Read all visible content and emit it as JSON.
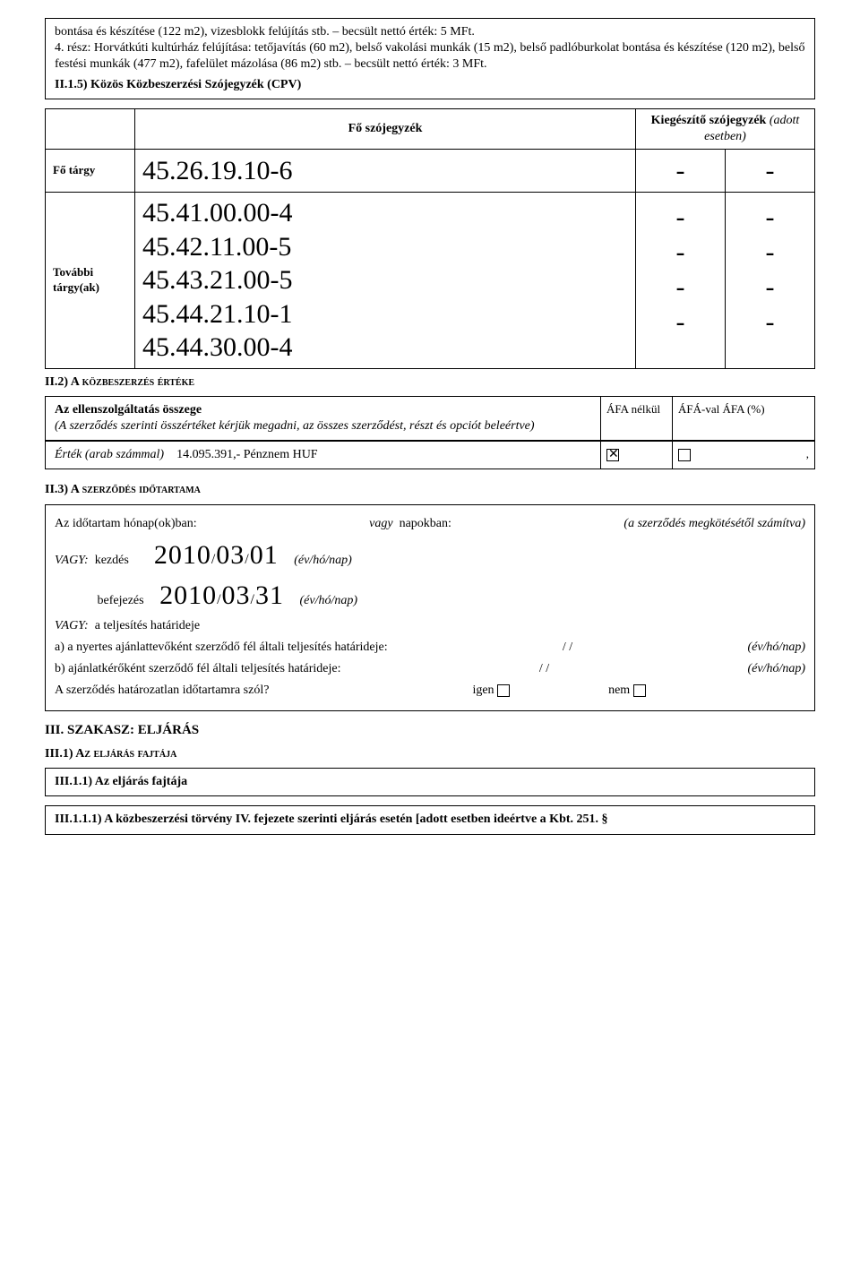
{
  "intro": {
    "line1": "bontása és készítése (122 m2), vizesblokk felújítás stb. – becsült nettó érték: 5 MFt.",
    "line2": "4. rész: Horvátkúti kultúrház felújítása: tetőjavítás (60 m2), belső vakolási munkák (15 m2), belső padlóburkolat bontása és készítése (120 m2), belső festési munkák (477 m2), fafelület mázolása (86 m2) stb. – becsült nettó érték: 3 MFt.",
    "cpv_title": "II.1.5) Közös Közbeszerzési Szójegyzék (CPV)"
  },
  "cpv": {
    "col_left": "Fő szójegyzék",
    "col_right": "Kiegészítő szójegyzék",
    "col_right_note": "(adott esetben)",
    "row1_label": "Fő tárgy",
    "row1_code": "45.26.19.10-6",
    "row2_label": "További tárgy(ak)",
    "row2_codes": [
      "45.41.00.00-4",
      "45.42.11.00-5",
      "45.43.21.00-5",
      "45.44.21.10-1",
      "45.44.30.00-4"
    ]
  },
  "ii2": {
    "title": "II.2) A KÖZBESZERZÉS ÉRTÉKE",
    "left_bold": "Az ellenszolgáltatás összege",
    "left_italic": "(A szerződés szerinti összértéket kérjük megadni, az összes szerződést, részt és opciót beleértve)",
    "mid": "ÁFA nélkül",
    "right": "ÁFÁ-val   ÁFA (%)",
    "value_label": "Érték (arab számmal)",
    "value": "14.095.391,- Pénznem HUF",
    "comma": ","
  },
  "ii3": {
    "title": "II.3) A SZERZŐDÉS IDŐTARTAMA",
    "row1_a": "Az időtartam hónap(ok)ban:",
    "row1_b": "vagy",
    "row1_c": "napokban:",
    "row1_d": "(a szerződés megkötésétől számítva)",
    "vagy": "VAGY:",
    "kezdes": "kezdés",
    "befejezes": "befejezés",
    "date1": "2010/03/01",
    "date2": "2010/03/31",
    "evhonap": "(év/hó/nap)",
    "telj": "a teljesítés határideje",
    "a_line": "a) a nyertes ajánlattevőként szerződő fél általi teljesítés határideje:",
    "b_line": "b) ajánlatkérőként szerződő fél általi teljesítés határideje:",
    "slash": "/       /",
    "hatarozatlan": "A szerződés határozatlan időtartamra szól?",
    "igen": "igen",
    "nem": "nem"
  },
  "iii": {
    "title": "III. SZAKASZ: ELJÁRÁS",
    "sub1": "III.1) AZ ELJÁRÁS FAJTÁJA",
    "sub11": "III.1.1) Az eljárás fajtája",
    "sub111": "III.1.1.1) A közbeszerzési törvény IV. fejezete szerinti eljárás esetén [adott esetben ideértve a Kbt. 251. §"
  }
}
